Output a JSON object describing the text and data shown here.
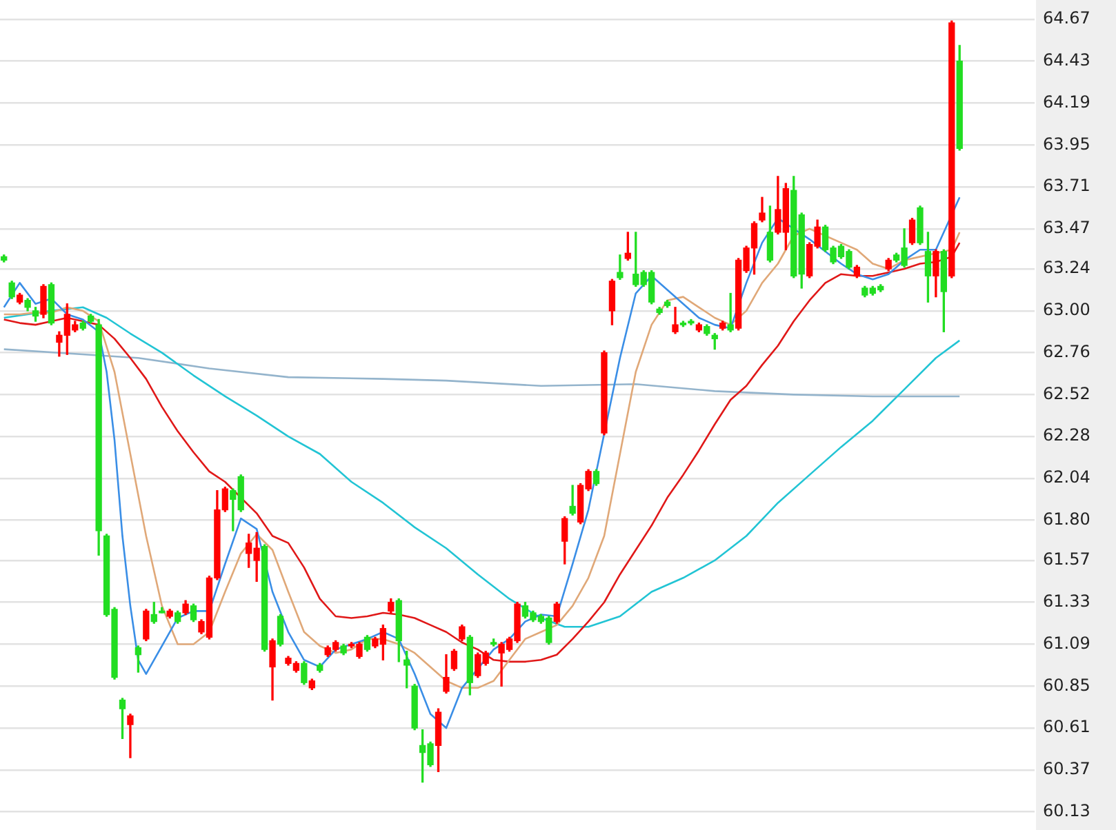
{
  "chart_data": {
    "type": "candlestick",
    "categories": [
      null,
      null,
      null,
      null,
      null,
      null,
      null,
      null,
      null,
      null,
      null,
      null,
      null,
      null,
      null,
      null,
      null,
      null,
      null,
      null,
      null,
      null,
      null,
      null,
      null,
      null,
      null,
      null,
      null,
      null,
      null,
      null,
      null,
      null,
      null,
      null,
      null,
      null,
      null,
      null,
      null,
      null,
      null,
      null,
      null,
      null,
      null,
      null,
      null,
      null,
      null,
      null,
      null,
      null,
      null,
      null,
      null,
      null,
      null,
      null,
      null,
      null,
      null,
      null,
      null,
      null,
      null,
      null,
      null,
      null,
      null,
      null,
      null,
      null,
      null,
      null,
      null,
      null,
      null,
      null,
      null,
      null,
      null,
      null,
      null,
      null,
      null,
      null,
      null,
      null,
      null,
      null,
      null,
      null,
      null,
      null,
      null,
      null,
      null,
      null,
      null,
      null,
      null,
      null,
      null,
      null,
      null,
      null,
      null,
      null,
      null,
      null,
      null,
      null,
      null,
      null,
      null,
      null,
      null,
      null,
      null,
      null
    ],
    "ohlc": [
      [
        63.31,
        63.32,
        63.28,
        63.29
      ],
      [
        63.16,
        63.17,
        63.07,
        63.08
      ],
      [
        63.05,
        63.1,
        63.04,
        63.09
      ],
      [
        63.06,
        63.07,
        63.0,
        63.02
      ],
      [
        63.0,
        63.02,
        62.94,
        62.97
      ],
      [
        62.98,
        63.15,
        62.96,
        63.14
      ],
      [
        63.15,
        63.16,
        62.92,
        62.93
      ],
      [
        62.82,
        62.88,
        62.74,
        62.86
      ],
      [
        62.86,
        63.04,
        62.75,
        62.98
      ],
      [
        62.89,
        62.94,
        62.88,
        62.92
      ],
      [
        62.93,
        62.94,
        62.89,
        62.9
      ],
      [
        62.97,
        62.98,
        62.93,
        62.94
      ],
      [
        62.92,
        62.95,
        61.6,
        61.74
      ],
      [
        61.71,
        61.72,
        61.25,
        61.26
      ],
      [
        61.29,
        61.3,
        60.89,
        60.9
      ],
      [
        60.77,
        60.78,
        60.55,
        60.72
      ],
      [
        60.63,
        60.69,
        60.44,
        60.68
      ],
      [
        61.07,
        61.08,
        60.93,
        61.03
      ],
      [
        61.12,
        61.29,
        61.11,
        61.28
      ],
      [
        61.26,
        61.33,
        61.21,
        61.22
      ],
      [
        61.28,
        61.3,
        61.27,
        61.27
      ],
      [
        61.25,
        61.29,
        61.24,
        61.28
      ],
      [
        61.27,
        61.28,
        61.21,
        61.22
      ],
      [
        61.27,
        61.34,
        61.26,
        61.32
      ],
      [
        61.31,
        61.32,
        61.22,
        61.23
      ],
      [
        61.16,
        61.23,
        61.15,
        61.22
      ],
      [
        61.13,
        61.48,
        61.12,
        61.47
      ],
      [
        61.47,
        61.97,
        61.46,
        61.86
      ],
      [
        61.86,
        61.99,
        61.85,
        61.98
      ],
      [
        61.97,
        61.98,
        61.74,
        61.92
      ],
      [
        62.05,
        62.06,
        61.85,
        61.86
      ],
      [
        61.61,
        61.72,
        61.53,
        61.67
      ],
      [
        61.57,
        61.73,
        61.45,
        61.64
      ],
      [
        61.65,
        61.66,
        61.05,
        61.06
      ],
      [
        60.96,
        61.12,
        60.77,
        61.11
      ],
      [
        61.25,
        61.26,
        61.08,
        61.09
      ],
      [
        60.98,
        61.02,
        60.97,
        61.01
      ],
      [
        60.94,
        60.99,
        60.93,
        60.98
      ],
      [
        60.98,
        60.99,
        60.86,
        60.87
      ],
      [
        60.84,
        60.89,
        60.83,
        60.88
      ],
      [
        60.97,
        60.98,
        60.93,
        60.94
      ],
      [
        61.03,
        61.08,
        61.02,
        61.07
      ],
      [
        61.06,
        61.11,
        61.05,
        61.1
      ],
      [
        61.08,
        61.09,
        61.03,
        61.04
      ],
      [
        61.08,
        61.1,
        61.07,
        61.09
      ],
      [
        61.02,
        61.1,
        61.01,
        61.09
      ],
      [
        61.13,
        61.14,
        61.05,
        61.06
      ],
      [
        61.08,
        61.13,
        61.07,
        61.12
      ],
      [
        61.09,
        61.2,
        61.0,
        61.18
      ],
      [
        61.28,
        61.35,
        61.27,
        61.33
      ],
      [
        61.34,
        61.35,
        60.99,
        61.11
      ],
      [
        61.0,
        61.05,
        60.84,
        60.97
      ],
      [
        60.85,
        60.86,
        60.6,
        60.61
      ],
      [
        60.51,
        60.6,
        60.3,
        60.47
      ],
      [
        60.52,
        60.53,
        60.39,
        60.4
      ],
      [
        60.51,
        60.72,
        60.36,
        60.7
      ],
      [
        60.82,
        61.03,
        60.81,
        60.9
      ],
      [
        60.95,
        61.06,
        60.94,
        61.05
      ],
      [
        61.12,
        61.2,
        61.11,
        61.19
      ],
      [
        61.13,
        61.14,
        60.8,
        60.87
      ],
      [
        60.91,
        61.04,
        60.9,
        61.03
      ],
      [
        60.98,
        61.05,
        60.97,
        61.04
      ],
      [
        61.1,
        61.12,
        61.08,
        61.09
      ],
      [
        61.04,
        61.1,
        60.85,
        61.09
      ],
      [
        61.06,
        61.13,
        61.05,
        61.12
      ],
      [
        61.11,
        61.33,
        61.1,
        61.32
      ],
      [
        61.31,
        61.33,
        61.24,
        61.25
      ],
      [
        61.27,
        61.28,
        61.22,
        61.23
      ],
      [
        61.25,
        61.26,
        61.21,
        61.22
      ],
      [
        61.24,
        61.25,
        61.09,
        61.1
      ],
      [
        61.22,
        61.33,
        61.21,
        61.32
      ],
      [
        61.68,
        61.82,
        61.55,
        61.81
      ],
      [
        61.88,
        62.0,
        61.83,
        61.84
      ],
      [
        61.79,
        62.01,
        61.78,
        62.0
      ],
      [
        61.98,
        62.09,
        61.97,
        62.08
      ],
      [
        62.08,
        62.09,
        62.0,
        62.01
      ],
      [
        62.3,
        62.77,
        62.29,
        62.76
      ],
      [
        63.0,
        63.18,
        62.92,
        63.17
      ],
      [
        63.22,
        63.32,
        63.18,
        63.19
      ],
      [
        63.3,
        63.45,
        63.29,
        63.33
      ],
      [
        63.21,
        63.45,
        63.14,
        63.15
      ],
      [
        63.22,
        63.23,
        63.14,
        63.15
      ],
      [
        63.22,
        63.23,
        63.04,
        63.05
      ],
      [
        63.01,
        63.02,
        62.98,
        62.99
      ],
      [
        63.05,
        63.06,
        63.02,
        63.03
      ],
      [
        62.88,
        63.02,
        62.87,
        62.92
      ],
      [
        62.93,
        62.94,
        62.91,
        62.92
      ],
      [
        62.94,
        62.95,
        62.92,
        62.93
      ],
      [
        62.89,
        62.93,
        62.88,
        62.92
      ],
      [
        62.91,
        62.92,
        62.86,
        62.87
      ],
      [
        62.86,
        62.87,
        62.78,
        62.84
      ],
      [
        62.9,
        62.94,
        62.89,
        62.93
      ],
      [
        62.92,
        63.1,
        62.88,
        62.89
      ],
      [
        62.9,
        63.3,
        62.89,
        63.29
      ],
      [
        63.23,
        63.37,
        63.22,
        63.36
      ],
      [
        63.36,
        63.51,
        63.21,
        63.5
      ],
      [
        63.52,
        63.65,
        63.51,
        63.56
      ],
      [
        63.45,
        63.6,
        63.28,
        63.29
      ],
      [
        63.45,
        63.77,
        63.44,
        63.58
      ],
      [
        63.45,
        63.73,
        63.35,
        63.7
      ],
      [
        63.69,
        63.77,
        63.19,
        63.2
      ],
      [
        63.55,
        63.56,
        63.13,
        63.21
      ],
      [
        63.2,
        63.39,
        63.19,
        63.38
      ],
      [
        63.37,
        63.52,
        63.36,
        63.48
      ],
      [
        63.48,
        63.49,
        63.34,
        63.35
      ],
      [
        63.36,
        63.37,
        63.27,
        63.28
      ],
      [
        63.37,
        63.38,
        63.3,
        63.31
      ],
      [
        63.34,
        63.35,
        63.24,
        63.25
      ],
      [
        63.2,
        63.26,
        63.19,
        63.25
      ],
      [
        63.13,
        63.14,
        63.08,
        63.09
      ],
      [
        63.13,
        63.14,
        63.09,
        63.1
      ],
      [
        63.14,
        63.15,
        63.11,
        63.12
      ],
      [
        63.24,
        63.3,
        63.23,
        63.29
      ],
      [
        63.32,
        63.33,
        63.28,
        63.29
      ],
      [
        63.36,
        63.47,
        63.25,
        63.26
      ],
      [
        63.39,
        63.53,
        63.38,
        63.52
      ],
      [
        63.59,
        63.6,
        63.38,
        63.39
      ],
      [
        63.34,
        63.45,
        63.05,
        63.2
      ],
      [
        63.2,
        63.35,
        63.08,
        63.34
      ],
      [
        63.34,
        63.35,
        62.88,
        63.11
      ],
      [
        63.2,
        64.66,
        63.19,
        64.65
      ],
      [
        64.43,
        64.52,
        63.92,
        63.93
      ]
    ],
    "colors": [
      "#22dd22",
      "#22dd22",
      "#ff0000",
      "#22dd22",
      "#22dd22",
      "#ff0000",
      "#22dd22",
      "#ff0000",
      "#ff0000",
      "#ff0000",
      "#22dd22",
      "#22dd22",
      "#22dd22",
      "#22dd22",
      "#22dd22",
      "#22dd22",
      "#ff0000",
      "#22dd22",
      "#ff0000",
      "#22dd22",
      "#22dd22",
      "#ff0000",
      "#22dd22",
      "#ff0000",
      "#22dd22",
      "#ff0000",
      "#ff0000",
      "#ff0000",
      "#ff0000",
      "#22dd22",
      "#22dd22",
      "#ff0000",
      "#ff0000",
      "#22dd22",
      "#ff0000",
      "#22dd22",
      "#ff0000",
      "#ff0000",
      "#22dd22",
      "#ff0000",
      "#22dd22",
      "#ff0000",
      "#ff0000",
      "#22dd22",
      "#ff0000",
      "#ff0000",
      "#22dd22",
      "#ff0000",
      "#ff0000",
      "#ff0000",
      "#22dd22",
      "#22dd22",
      "#22dd22",
      "#22dd22",
      "#22dd22",
      "#ff0000",
      "#ff0000",
      "#ff0000",
      "#ff0000",
      "#22dd22",
      "#ff0000",
      "#ff0000",
      "#22dd22",
      "#ff0000",
      "#ff0000",
      "#ff0000",
      "#22dd22",
      "#22dd22",
      "#22dd22",
      "#22dd22",
      "#ff0000",
      "#ff0000",
      "#22dd22",
      "#ff0000",
      "#ff0000",
      "#22dd22",
      "#ff0000",
      "#ff0000",
      "#22dd22",
      "#ff0000",
      "#22dd22",
      "#22dd22",
      "#22dd22",
      "#22dd22",
      "#22dd22",
      "#ff0000",
      "#22dd22",
      "#22dd22",
      "#ff0000",
      "#22dd22",
      "#22dd22",
      "#ff0000",
      "#22dd22",
      "#ff0000",
      "#ff0000",
      "#ff0000",
      "#ff0000",
      "#22dd22",
      "#ff0000",
      "#ff0000",
      "#22dd22",
      "#22dd22",
      "#ff0000",
      "#ff0000",
      "#22dd22",
      "#22dd22",
      "#22dd22",
      "#22dd22",
      "#ff0000",
      "#22dd22",
      "#22dd22",
      "#22dd22",
      "#ff0000",
      "#22dd22",
      "#22dd22",
      "#ff0000",
      "#22dd22",
      "#22dd22",
      "#ff0000",
      "#22dd22",
      "#ff0000",
      "#22dd22"
    ],
    "series": [
      {
        "type": "line",
        "color": "#3a8ee6",
        "values": [
          63.02,
          null,
          63.16,
          null,
          63.04,
          null,
          63.07,
          null,
          62.98,
          null,
          62.95,
          null,
          62.88,
          62.65,
          62.26,
          61.71,
          61.31,
          61.0,
          60.92,
          null,
          61.08,
          null,
          61.24,
          null,
          61.28,
          null,
          61.28,
          null,
          61.55,
          null,
          61.81,
          null,
          61.75,
          null,
          61.39,
          null,
          61.16,
          null,
          61.0,
          null,
          60.96,
          null,
          61.06,
          null,
          61.09,
          null,
          61.12,
          null,
          61.16,
          null,
          61.12,
          null,
          60.92,
          null,
          60.69,
          null,
          60.61,
          null,
          60.84,
          null,
          null,
          null,
          61.06,
          null,
          61.12,
          null,
          61.22,
          null,
          61.26,
          null,
          61.25,
          null,
          61.55,
          null,
          61.86,
          null,
          null,
          null,
          62.73,
          null,
          63.1,
          null,
          63.2,
          null,
          63.12,
          null,
          63.04,
          null,
          62.96,
          null,
          62.92,
          null,
          62.9,
          null,
          63.16,
          null,
          63.39,
          null,
          63.53,
          null,
          null,
          null,
          63.41,
          null,
          63.34,
          null,
          63.27,
          null,
          63.21,
          null,
          63.18,
          null,
          63.21,
          null,
          63.29,
          null,
          63.35,
          null,
          63.35,
          null,
          null,
          63.65
        ]
      },
      {
        "type": "line",
        "color": "#e0a878",
        "values": [
          62.98,
          null,
          62.98,
          null,
          62.99,
          null,
          62.99,
          null,
          63.02,
          null,
          63.0,
          null,
          62.94,
          null,
          62.65,
          null,
          62.18,
          null,
          61.71,
          null,
          61.31,
          null,
          61.09,
          null,
          61.09,
          null,
          61.16,
          null,
          61.39,
          null,
          61.61,
          null,
          61.72,
          null,
          61.63,
          null,
          61.39,
          null,
          61.16,
          null,
          61.08,
          null,
          61.04,
          null,
          61.06,
          null,
          61.12,
          null,
          61.12,
          null,
          61.09,
          null,
          61.04,
          null,
          60.96,
          null,
          60.88,
          null,
          60.84,
          null,
          60.84,
          null,
          60.88,
          null,
          61.0,
          null,
          61.12,
          null,
          61.16,
          null,
          61.2,
          null,
          61.31,
          null,
          61.47,
          null,
          61.71,
          null,
          62.18,
          null,
          62.65,
          null,
          62.92,
          null,
          63.06,
          null,
          63.08,
          null,
          63.02,
          null,
          62.96,
          null,
          62.92,
          null,
          63.0,
          null,
          63.16,
          null,
          63.27,
          null,
          63.43,
          null,
          63.47,
          null,
          63.43,
          null,
          63.39,
          null,
          63.35,
          null,
          63.27,
          null,
          63.24,
          null,
          63.29,
          null,
          63.31,
          null,
          null,
          null,
          63.35,
          63.45
        ]
      },
      {
        "type": "line",
        "color": "#e01818",
        "values": [
          62.95,
          null,
          62.93,
          null,
          62.92,
          null,
          62.94,
          null,
          62.96,
          null,
          62.94,
          null,
          62.92,
          null,
          62.84,
          null,
          62.73,
          null,
          62.61,
          null,
          62.45,
          null,
          62.31,
          null,
          62.19,
          null,
          62.08,
          null,
          62.02,
          null,
          61.93,
          null,
          61.84,
          null,
          61.71,
          null,
          61.67,
          null,
          61.53,
          null,
          61.35,
          null,
          61.25,
          null,
          61.24,
          null,
          61.25,
          null,
          61.27,
          null,
          61.26,
          null,
          61.24,
          null,
          61.2,
          null,
          61.16,
          null,
          61.1,
          null,
          61.06,
          null,
          61.0,
          null,
          60.99,
          null,
          60.99,
          null,
          61.0,
          null,
          61.03,
          null,
          61.12,
          null,
          61.22,
          null,
          61.33,
          null,
          61.49,
          null,
          61.63,
          null,
          61.77,
          null,
          61.93,
          null,
          62.06,
          null,
          62.2,
          null,
          62.35,
          null,
          62.49,
          null,
          62.57,
          null,
          62.69,
          null,
          62.8,
          null,
          62.94,
          null,
          63.06,
          null,
          63.16,
          null,
          63.21,
          null,
          63.2,
          null,
          63.2,
          null,
          63.22,
          null,
          63.24,
          null,
          63.27,
          null,
          63.28,
          null,
          63.31,
          63.39
        ]
      },
      {
        "type": "line",
        "color": "#22c4d4",
        "values": [
          62.96,
          null,
          null,
          null,
          null,
          null,
          63.0,
          null,
          null,
          null,
          63.02,
          null,
          null,
          62.96,
          null,
          null,
          62.87,
          null,
          null,
          null,
          62.76,
          null,
          null,
          null,
          62.63,
          null,
          null,
          null,
          62.51,
          null,
          null,
          null,
          62.4,
          null,
          null,
          null,
          62.28,
          null,
          null,
          null,
          62.18,
          null,
          null,
          null,
          62.02,
          null,
          null,
          null,
          61.9,
          null,
          null,
          null,
          61.76,
          null,
          null,
          null,
          61.64,
          null,
          null,
          null,
          61.49,
          null,
          null,
          null,
          61.35,
          null,
          null,
          null,
          61.24,
          null,
          null,
          61.19,
          null,
          null,
          61.19,
          null,
          null,
          null,
          61.25,
          null,
          null,
          null,
          61.39,
          null,
          null,
          null,
          61.47,
          null,
          null,
          null,
          61.57,
          null,
          null,
          null,
          61.71,
          null,
          null,
          null,
          61.9,
          null,
          null,
          null,
          62.06,
          null,
          null,
          null,
          62.22,
          null,
          null,
          null,
          62.37,
          null,
          null,
          null,
          62.55,
          null,
          null,
          null,
          62.73,
          null,
          null,
          62.83
        ]
      },
      {
        "type": "line",
        "color": "#94b4cc",
        "values": [
          62.78,
          null,
          null,
          null,
          null,
          null,
          null,
          null,
          null,
          null,
          null,
          null,
          null,
          null,
          null,
          null,
          null,
          62.73,
          null,
          null,
          null,
          null,
          null,
          null,
          null,
          null,
          62.67,
          null,
          null,
          null,
          null,
          null,
          null,
          null,
          null,
          null,
          62.62,
          null,
          null,
          null,
          null,
          null,
          null,
          null,
          null,
          null,
          null,
          null,
          62.61,
          null,
          null,
          null,
          null,
          null,
          null,
          null,
          62.6,
          null,
          null,
          null,
          null,
          null,
          null,
          null,
          null,
          null,
          null,
          null,
          62.57,
          null,
          null,
          null,
          null,
          null,
          null,
          null,
          null,
          null,
          null,
          null,
          62.58,
          null,
          null,
          null,
          null,
          null,
          null,
          null,
          null,
          null,
          62.54,
          null,
          null,
          null,
          null,
          null,
          null,
          null,
          null,
          null,
          62.52,
          null,
          null,
          null,
          null,
          null,
          null,
          null,
          null,
          null,
          62.51,
          null,
          null,
          null,
          null,
          null,
          null,
          null,
          null,
          null,
          null,
          62.51
        ]
      }
    ],
    "ylim": [
      60.13,
      64.67
    ],
    "yticks": [
      64.67,
      64.43,
      64.19,
      63.95,
      63.71,
      63.47,
      63.24,
      {
        "value": 63,
        "label": "63.00"
      },
      62.76,
      62.52,
      62.28,
      62.04,
      {
        "value": 61.8,
        "label": "61.80"
      },
      61.57,
      61.33,
      61.09,
      60.85,
      60.61,
      60.37,
      60.13
    ],
    "grid": "y",
    "legend": false,
    "tick_labels": "y",
    "marker": "none",
    "line_style": "solid"
  }
}
